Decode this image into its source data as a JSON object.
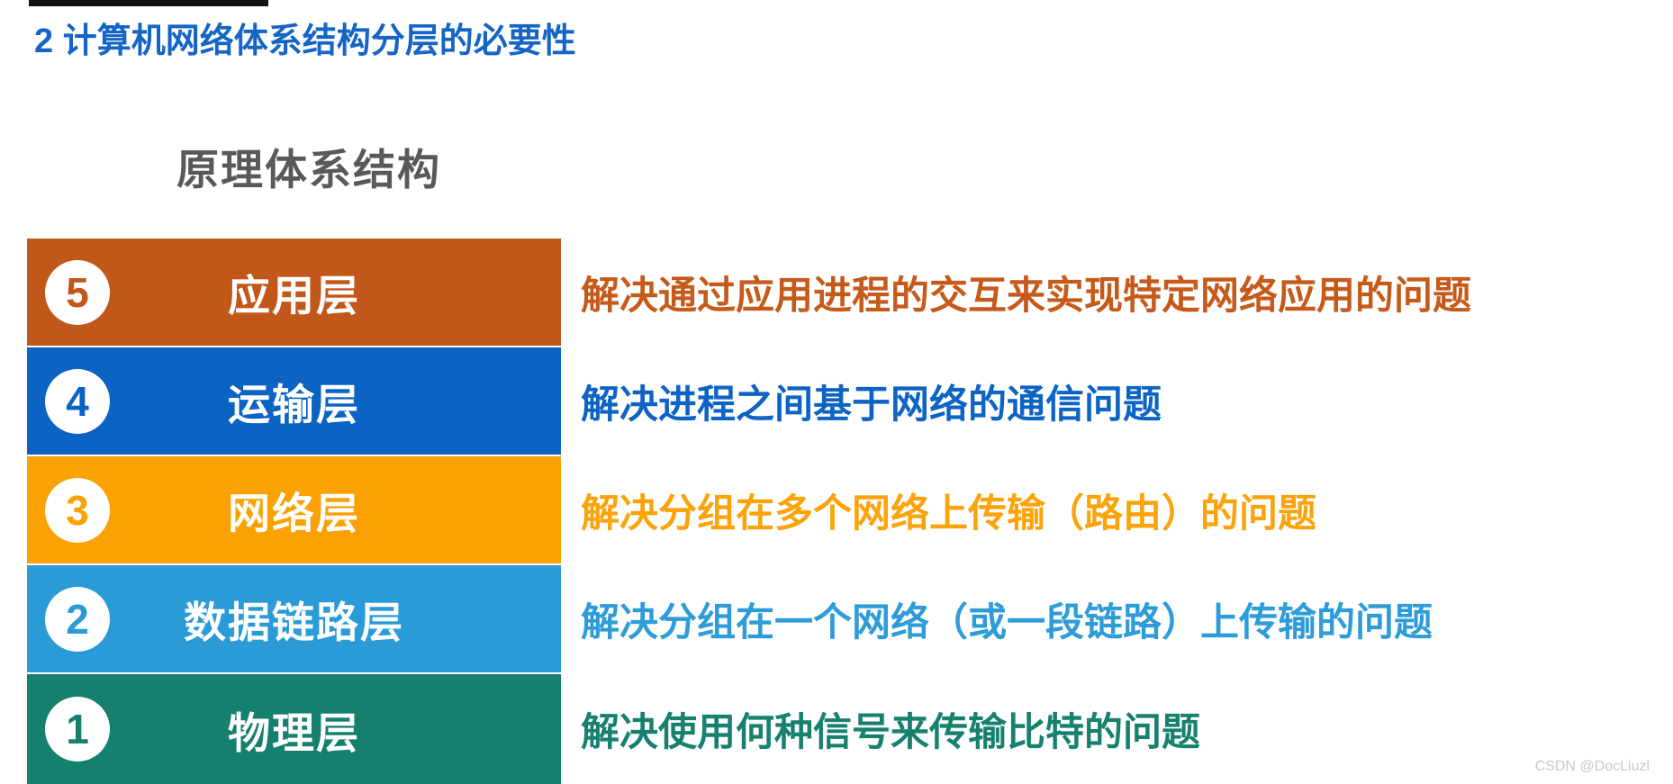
{
  "slide": {
    "title": "2 计算机网络体系结构分层的必要性",
    "column_heading": "原理体系结构",
    "watermark": "CSDN @DocLiuzl"
  },
  "colors": {
    "title_blue": "#1565c6",
    "heading_gray": "#595959",
    "application_layer_orange": "#c2571a",
    "transport_layer_blue": "#0b63c4",
    "network_layer_amber": "#fba103",
    "datalink_layer_lightblue": "#2b9bd8",
    "physical_layer_teal": "#16806f",
    "watermark_gray": "#c8c8c8"
  },
  "layers": [
    {
      "number": "5",
      "name": "应用层",
      "description": "解决通过应用进程的交互来实现特定网络应用的问题"
    },
    {
      "number": "4",
      "name": "运输层",
      "description": "解决进程之间基于网络的通信问题"
    },
    {
      "number": "3",
      "name": "网络层",
      "description": "解决分组在多个网络上传输（路由）的问题"
    },
    {
      "number": "2",
      "name": "数据链路层",
      "description": "解决分组在一个网络（或一段链路）上传输的问题"
    },
    {
      "number": "1",
      "name": "物理层",
      "description": "解决使用何种信号来传输比特的问题"
    }
  ]
}
